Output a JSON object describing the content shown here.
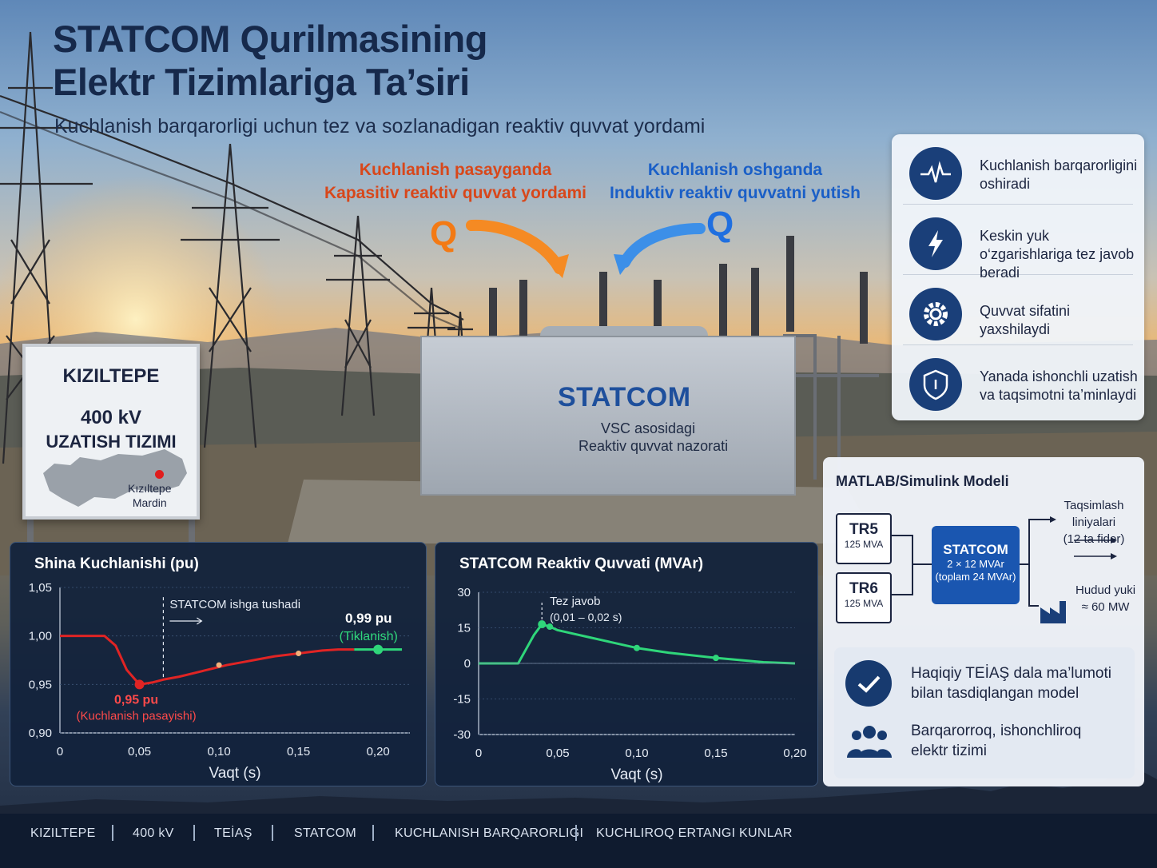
{
  "header": {
    "title_line1": "STATCOM Qurilmasining",
    "title_line2": "Elektr Tizimlariga Ta’siri",
    "subtitle": "Kuchlanish barqarorligi uchun tez va sozlanadigan reaktiv quvvat yordami"
  },
  "flows": {
    "capacitive_line1": "Kuchlanish pasayganda",
    "capacitive_line2": "Kapasitiv reaktiv quvvat yordami",
    "inductive_line1": "Kuchlanish oshganda",
    "inductive_line2": "Induktiv reaktiv quvvatni yutish",
    "q_symbol": "Q",
    "capacitive_color": "#f37a15",
    "inductive_color": "#1f6fe0"
  },
  "sign": {
    "line1": "KIZILTEPE",
    "line2": "400 kV",
    "line3": "UZATISH TIZIMI",
    "city": "Kızıltepe",
    "province": "Mardin"
  },
  "statcom_unit": {
    "name": "STATCOM",
    "desc1": "VSC asosidagi",
    "desc2": "Reaktiv quvvat nazorati"
  },
  "benefits": [
    {
      "icon": "waveform-icon",
      "text": "Kuchlanish barqarorligini oshiradi"
    },
    {
      "icon": "lightning-icon",
      "text": "Keskin yuk o‘zgarishlariga tez javob beradi"
    },
    {
      "icon": "gear-icon",
      "text": "Quvvat sifatini yaxshilaydi"
    },
    {
      "icon": "shield-icon",
      "text": "Yanada ishonchli uzatish va taqsimotni ta’minlaydi"
    }
  ],
  "model": {
    "title": "MATLAB/Simulink Modeli",
    "tr5_name": "TR5",
    "tr5_rating": "125 MVA",
    "tr6_name": "TR6",
    "tr6_rating": "125 MVA",
    "statcom_name": "STATCOM",
    "statcom_rating": "2 × 12 MVAr",
    "statcom_total": "(toplam 24 MVAr)",
    "feeder_line1": "Taqsimlash liniyalari",
    "feeder_line2": "(12 ta fider)",
    "load_line1": "Hudud yuki",
    "load_line2": "≈ 60 MW",
    "validation_line1": "Haqiqiy TEİAŞ dala ma’lumoti",
    "validation_line2": "bilan tasdiqlangan model",
    "result_line1": "Barqarorroq, ishonchliroq",
    "result_line2": "elektr tizimi"
  },
  "chart_data": [
    {
      "type": "line",
      "title": "Shina Kuchlanishi (pu)",
      "xlabel": "Vaqt (s)",
      "ylabel": "",
      "xlim": [
        0,
        0.22
      ],
      "ylim": [
        0.9,
        1.05
      ],
      "xticks": [
        "0",
        "0,05",
        "0,10",
        "0,15",
        "0,20"
      ],
      "yticks": [
        "1,05",
        "1,00",
        "0,95",
        "0,90"
      ],
      "series": [
        {
          "color": "#e02424",
          "x": [
            0,
            0.028,
            0.035,
            0.042,
            0.05,
            0.058,
            0.065,
            0.075,
            0.085,
            0.095,
            0.105,
            0.115,
            0.125,
            0.135,
            0.145,
            0.155,
            0.165,
            0.175,
            0.185
          ],
          "y": [
            1.0,
            1.0,
            0.99,
            0.965,
            0.95,
            0.952,
            0.955,
            0.958,
            0.962,
            0.966,
            0.97,
            0.973,
            0.976,
            0.979,
            0.981,
            0.983,
            0.985,
            0.986,
            0.986
          ]
        },
        {
          "color": "#2fd67a",
          "x": [
            0.185,
            0.2,
            0.215
          ],
          "y": [
            0.986,
            0.986,
            0.986
          ]
        }
      ],
      "annotations": {
        "event": "STATCOM ishga tushadi",
        "event_x": 0.065,
        "min_value": "0,95 pu",
        "min_label": "(Kuchlanish pasayishi)",
        "recovery_value": "0,99 pu",
        "recovery_label": "(Tiklanish)"
      }
    },
    {
      "type": "line",
      "title": "STATCOM Reaktiv Quvvati (MVAr)",
      "xlabel": "Vaqt (s)",
      "ylabel": "",
      "xlim": [
        0,
        0.2
      ],
      "ylim": [
        -30,
        30
      ],
      "xticks": [
        "0",
        "0,05",
        "0,10",
        "0,15",
        "0,20"
      ],
      "yticks": [
        "30",
        "15",
        "0",
        "-15",
        "-30"
      ],
      "series": [
        {
          "color": "#2fd67a",
          "x": [
            0,
            0.02,
            0.025,
            0.03,
            0.035,
            0.04,
            0.045,
            0.05,
            0.06,
            0.07,
            0.08,
            0.1,
            0.12,
            0.15,
            0.18,
            0.2
          ],
          "y": [
            0,
            0,
            0,
            6,
            12,
            16.5,
            15.5,
            14,
            12.5,
            11,
            9.5,
            6.5,
            4.5,
            2.3,
            0.5,
            0
          ]
        }
      ],
      "annotations": {
        "fast_response": "Tez javob",
        "fast_response_range": "(0,01 – 0,02 s)"
      }
    }
  ],
  "footer": [
    "KIZILTEPE",
    "400 kV",
    "TEİAŞ",
    "STATCOM",
    "KUCHLANISH BARQARORLIGI",
    "KUCHLIROQ ERTANGI KUNLAR"
  ]
}
